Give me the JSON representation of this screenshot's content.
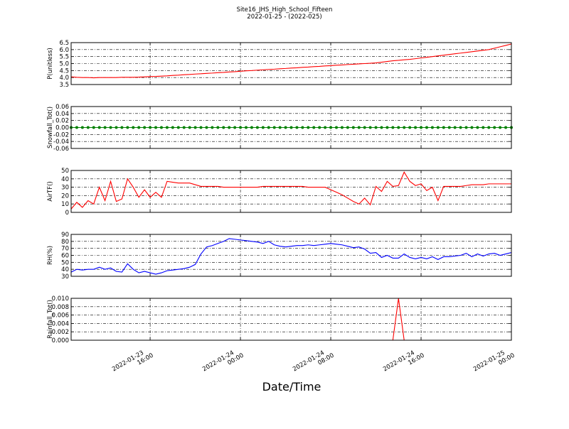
{
  "chart_data": {
    "type": "line",
    "title": "Site16_JHS_High_School_Fifteen",
    "subtitle": "2022-01-25 - (2022-025)",
    "xlabel": "Date/Time",
    "grid": true,
    "xlim": [
      "2022-01-23 09:00",
      "2022-01-25 00:00"
    ],
    "xticks": [
      {
        "value": "2022-01-23 16:00",
        "label": "2022-01-23\n16:00"
      },
      {
        "value": "2022-01-24 00:00",
        "label": "2022-01-24\n00:00"
      },
      {
        "value": "2022-01-24 08:00",
        "label": "2022-01-24\n08:00"
      },
      {
        "value": "2022-01-24 16:00",
        "label": "2022-01-24\n16:00"
      },
      {
        "value": "2022-01-25 00:00",
        "label": "2022-01-25\n00:00"
      }
    ],
    "x": [
      "2022-01-23 09:00",
      "2022-01-23 09:30",
      "2022-01-23 10:00",
      "2022-01-23 10:30",
      "2022-01-23 11:00",
      "2022-01-23 11:30",
      "2022-01-23 12:00",
      "2022-01-23 12:30",
      "2022-01-23 13:00",
      "2022-01-23 13:30",
      "2022-01-23 14:00",
      "2022-01-23 14:30",
      "2022-01-23 15:00",
      "2022-01-23 15:30",
      "2022-01-23 16:00",
      "2022-01-23 16:30",
      "2022-01-23 17:00",
      "2022-01-23 17:30",
      "2022-01-23 18:00",
      "2022-01-23 18:30",
      "2022-01-23 19:00",
      "2022-01-23 19:30",
      "2022-01-23 20:00",
      "2022-01-23 20:30",
      "2022-01-23 21:00",
      "2022-01-23 21:30",
      "2022-01-23 22:00",
      "2022-01-23 22:30",
      "2022-01-23 23:00",
      "2022-01-23 23:30",
      "2022-01-24 00:00",
      "2022-01-24 00:30",
      "2022-01-24 01:00",
      "2022-01-24 01:30",
      "2022-01-24 02:00",
      "2022-01-24 02:30",
      "2022-01-24 03:00",
      "2022-01-24 03:30",
      "2022-01-24 04:00",
      "2022-01-24 04:30",
      "2022-01-24 05:00",
      "2022-01-24 05:30",
      "2022-01-24 06:00",
      "2022-01-24 06:30",
      "2022-01-24 07:00",
      "2022-01-24 07:30",
      "2022-01-24 08:00",
      "2022-01-24 08:30",
      "2022-01-24 09:00",
      "2022-01-24 09:30",
      "2022-01-24 10:00",
      "2022-01-24 10:30",
      "2022-01-24 11:00",
      "2022-01-24 11:30",
      "2022-01-24 12:00",
      "2022-01-24 12:30",
      "2022-01-24 13:00",
      "2022-01-24 13:30",
      "2022-01-24 14:00",
      "2022-01-24 14:30",
      "2022-01-24 15:00",
      "2022-01-24 15:30",
      "2022-01-24 16:00",
      "2022-01-24 16:30",
      "2022-01-24 17:00",
      "2022-01-24 17:30",
      "2022-01-24 18:00",
      "2022-01-24 18:30",
      "2022-01-24 19:00",
      "2022-01-24 19:30",
      "2022-01-24 20:00",
      "2022-01-24 20:30",
      "2022-01-24 21:00",
      "2022-01-24 21:30",
      "2022-01-24 22:00",
      "2022-01-24 22:30",
      "2022-01-24 23:00",
      "2022-01-24 23:30",
      "2022-01-25 00:00"
    ],
    "panels": [
      {
        "ylabel": "P(unitless)",
        "ylim": [
          3.5,
          6.5
        ],
        "yticks": [
          3.5,
          {
            "value": 4,
            "label": "4.0"
          },
          4.5,
          {
            "value": 5,
            "label": "5.0"
          },
          5.5,
          {
            "value": 6,
            "label": "6.0"
          },
          6.5
        ],
        "series": [
          {
            "color": "#ff0000",
            "values": [
              4.05,
              4.02,
              4.0,
              4.0,
              3.98,
              4.0,
              4.0,
              4.0,
              4.0,
              4.02,
              4.02,
              4.02,
              4.03,
              4.05,
              4.07,
              4.08,
              4.1,
              4.12,
              4.15,
              4.17,
              4.2,
              4.22,
              4.25,
              4.27,
              4.3,
              4.32,
              4.35,
              4.37,
              4.4,
              4.42,
              4.45,
              4.48,
              4.5,
              4.53,
              4.55,
              4.58,
              4.6,
              4.63,
              4.65,
              4.68,
              4.7,
              4.73,
              4.75,
              4.78,
              4.8,
              4.83,
              4.85,
              4.88,
              4.9,
              4.93,
              4.95,
              4.98,
              5.0,
              5.02,
              5.05,
              5.1,
              5.15,
              5.2,
              5.23,
              5.27,
              5.3,
              5.35,
              5.4,
              5.45,
              5.5,
              5.55,
              5.6,
              5.65,
              5.7,
              5.75,
              5.8,
              5.85,
              5.9,
              5.95,
              6.0,
              6.1,
              6.2,
              6.3,
              6.4
            ]
          }
        ]
      },
      {
        "ylabel": "Snowfall_Tot()",
        "ylim": [
          -0.06,
          0.06
        ],
        "yticks": [
          -0.06,
          -0.04,
          -0.02,
          {
            "value": 0,
            "label": "0.00"
          },
          0.02,
          0.04,
          0.06
        ],
        "series": [
          {
            "color": "#008000",
            "marker": true,
            "values": [
              0,
              0,
              0,
              0,
              0,
              0,
              0,
              0,
              0,
              0,
              0,
              0,
              0,
              0,
              0,
              0,
              0,
              0,
              0,
              0,
              0,
              0,
              0,
              0,
              0,
              0,
              0,
              0,
              0,
              0,
              0,
              0,
              0,
              0,
              0,
              0,
              0,
              0,
              0,
              0,
              0,
              0,
              0,
              0,
              0,
              0,
              0,
              0,
              0,
              0,
              0,
              0,
              0,
              0,
              0,
              0,
              0,
              0,
              0,
              0,
              0,
              0,
              0,
              0,
              0,
              0,
              0,
              0,
              0,
              0,
              0,
              0,
              0,
              0,
              0,
              0,
              0,
              0,
              0
            ]
          }
        ]
      },
      {
        "ylabel": "AirTF()",
        "ylim": [
          0,
          50
        ],
        "yticks": [
          0,
          10,
          20,
          30,
          40,
          50
        ],
        "series": [
          {
            "color": "#ff0000",
            "values": [
              4,
              12,
              6,
              14,
              10,
              30,
              14,
              37,
              13,
              16,
              40,
              30,
              18,
              27,
              18,
              24,
              18,
              37,
              36,
              35,
              35,
              35,
              33,
              31,
              31,
              31,
              31,
              30,
              30,
              30,
              30,
              30,
              30,
              30,
              31,
              31,
              31,
              31,
              31,
              31,
              31,
              31,
              30,
              30,
              30,
              30,
              27,
              24,
              21,
              17,
              13,
              10,
              17,
              9,
              31,
              25,
              37,
              31,
              32,
              48,
              37,
              32,
              34,
              26,
              30,
              14,
              31,
              31,
              31,
              31,
              32,
              33,
              33,
              33,
              34,
              34,
              34,
              34,
              34
            ]
          }
        ]
      },
      {
        "ylabel": "RH(%)",
        "ylim": [
          30,
          90
        ],
        "yticks": [
          30,
          40,
          50,
          60,
          70,
          80,
          90
        ],
        "series": [
          {
            "color": "#0000ff",
            "values": [
              36,
              40,
              39,
              40,
              40,
              43,
              40,
              42,
              37,
              36,
              48,
              40,
              35,
              37,
              35,
              33,
              35,
              38,
              39,
              40,
              41,
              43,
              47,
              62,
              72,
              74,
              77,
              80,
              84,
              83,
              82,
              81,
              80,
              79,
              77,
              80,
              75,
              73,
              72,
              73,
              74,
              74,
              75,
              74,
              75,
              76,
              77,
              76,
              75,
              73,
              71,
              72,
              69,
              63,
              64,
              57,
              60,
              56,
              56,
              62,
              57,
              55,
              57,
              55,
              58,
              54,
              58,
              58,
              59,
              60,
              63,
              58,
              62,
              59,
              62,
              63,
              60,
              62,
              64
            ]
          }
        ]
      },
      {
        "ylabel": "Rainfall_Tot()",
        "ylim": [
          0,
          0.01
        ],
        "yticks": [
          {
            "value": 0,
            "label": "0.000"
          },
          0.002,
          0.004,
          0.006,
          0.008,
          {
            "value": 0.01,
            "label": "0.010"
          }
        ],
        "series": [
          {
            "color": "#ff0000",
            "values": [
              0,
              0,
              0,
              0,
              0,
              0,
              0,
              0,
              0,
              0,
              0,
              0,
              0,
              0,
              0,
              0,
              0,
              0,
              0,
              0,
              0,
              0,
              0,
              0,
              0,
              0,
              0,
              0,
              0,
              0,
              0,
              0,
              0,
              0,
              0,
              0,
              0,
              0,
              0,
              0,
              0,
              0,
              0,
              0,
              0,
              0,
              0,
              0,
              0,
              0,
              0,
              0,
              0,
              0,
              0,
              0,
              0,
              0,
              0.01,
              0,
              0,
              0,
              0,
              0,
              0,
              0,
              0,
              0,
              0,
              0,
              0,
              0,
              0,
              0,
              0,
              0,
              0,
              0,
              0
            ]
          }
        ]
      }
    ]
  }
}
